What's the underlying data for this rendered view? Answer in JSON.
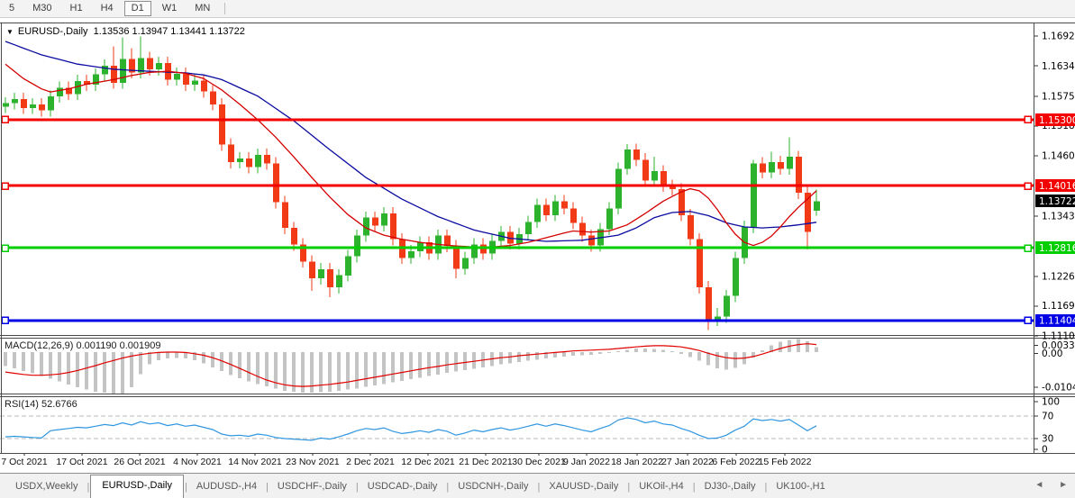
{
  "toolbar": {
    "timeframes": [
      "5",
      "M30",
      "H1",
      "H4",
      "D1",
      "W1",
      "MN"
    ],
    "active": "D1"
  },
  "header": {
    "dropdown": "▼",
    "symbol_title": "EURUSD-,Daily",
    "ohlc": "1.13536 1.13947 1.13441 1.13722"
  },
  "indicators": {
    "macd": {
      "title_label": "MACD(12,26,9)",
      "title_values": "0.001190 0.001909"
    },
    "rsi": {
      "title_label": "RSI(14)",
      "title_value": "52.6766"
    }
  },
  "tab_bar": {
    "tabs": [
      "USDX,Weekly",
      "EURUSD-,Daily",
      "AUDUSD-,H4",
      "USDCHF-,Daily",
      "USDCAD-,Daily",
      "USDCNH-,Daily",
      "XAUUSD-,Daily",
      "UKOil-,H4",
      "DJ30-,Daily",
      "UK100-,H1"
    ],
    "active": "EURUSD-,Daily",
    "nav_left": "◄",
    "nav_right": "►"
  },
  "chart_data": {
    "type": "candlestick",
    "symbol": "EURUSD-",
    "timeframe": "Daily",
    "current_bar": {
      "open": 1.13536,
      "high": 1.13947,
      "low": 1.13441,
      "close": 1.13722
    },
    "colors": {
      "up": "#2db22d",
      "down": "#f23a17",
      "ma_fast": "#d40000",
      "ma_slow": "#0a0aa0",
      "macd_hist": "#c4c4c4",
      "macd_signal": "#e00000",
      "rsi_line": "#2f96e0",
      "badge_text": "#ffffff",
      "current_badge_bg": "#000000"
    },
    "price_axis": {
      "ticks": [
        "1.16925",
        "1.16340",
        "1.15755",
        "1.15185",
        "1.14600",
        "1.13430",
        "1.12260",
        "1.11690",
        "1.11105"
      ],
      "tick_values": [
        1.16925,
        1.1634,
        1.15755,
        1.15185,
        1.146,
        1.1343,
        1.1226,
        1.1169,
        1.11105
      ],
      "current_badge": {
        "label": "1.13722",
        "value": 1.13722
      }
    },
    "hlines": [
      {
        "label": "1.15300",
        "value": 1.153,
        "color": "#f50000"
      },
      {
        "label": "1.14016",
        "value": 1.14016,
        "color": "#f50000"
      },
      {
        "label": "1.12816",
        "value": 1.12816,
        "color": "#00ce00"
      },
      {
        "label": "1.11404",
        "value": 1.11404,
        "color": "#0000e6"
      }
    ],
    "x_axis": {
      "labels": [
        "7 Oct 2021",
        "17 Oct 2021",
        "26 Oct 2021",
        "4 Nov 2021",
        "14 Nov 2021",
        "23 Nov 2021",
        "2 Dec 2021",
        "12 Dec 2021",
        "21 Dec 2021",
        "30 Dec 2021",
        "9 Jan 2022",
        "18 Jan 2022",
        "27 Jan 2022",
        "6 Feb 2022",
        "15 Feb 2022"
      ],
      "x": [
        27,
        91,
        155,
        219,
        283,
        347,
        411,
        475,
        539,
        598,
        651,
        707,
        763,
        817,
        871
      ]
    },
    "candles": [
      [
        1.1555,
        1.1574,
        1.1543,
        1.1562
      ],
      [
        1.1562,
        1.1582,
        1.155,
        1.157
      ],
      [
        1.157,
        1.1582,
        1.1541,
        1.1553
      ],
      [
        1.1553,
        1.1572,
        1.1541,
        1.156
      ],
      [
        1.156,
        1.1572,
        1.1536,
        1.1548
      ],
      [
        1.1548,
        1.1587,
        1.1536,
        1.1575
      ],
      [
        1.1575,
        1.1604,
        1.1563,
        1.1592
      ],
      [
        1.1592,
        1.1604,
        1.1568,
        1.158
      ],
      [
        1.158,
        1.1617,
        1.1568,
        1.1605
      ],
      [
        1.1605,
        1.1617,
        1.1586,
        1.1598
      ],
      [
        1.1598,
        1.163,
        1.1586,
        1.1618
      ],
      [
        1.1618,
        1.1647,
        1.1606,
        1.1635
      ],
      [
        1.1635,
        1.1672,
        1.159,
        1.1602
      ],
      [
        1.1602,
        1.169,
        1.159,
        1.1648
      ],
      [
        1.1648,
        1.1669,
        1.161,
        1.1622
      ],
      [
        1.1622,
        1.1692,
        1.161,
        1.165
      ],
      [
        1.165,
        1.1662,
        1.1616,
        1.1628
      ],
      [
        1.1628,
        1.1652,
        1.1616,
        1.164
      ],
      [
        1.164,
        1.1652,
        1.1596,
        1.1608
      ],
      [
        1.1608,
        1.1631,
        1.1596,
        1.1619
      ],
      [
        1.1619,
        1.1631,
        1.1586,
        1.1598
      ],
      [
        1.1598,
        1.1618,
        1.1586,
        1.1606
      ],
      [
        1.1606,
        1.1618,
        1.1573,
        1.1585
      ],
      [
        1.1585,
        1.1597,
        1.1548,
        1.156
      ],
      [
        1.156,
        1.1572,
        1.147,
        1.1482
      ],
      [
        1.1482,
        1.1494,
        1.1436,
        1.1448
      ],
      [
        1.1448,
        1.1467,
        1.1436,
        1.1455
      ],
      [
        1.1455,
        1.1467,
        1.1426,
        1.1438
      ],
      [
        1.1438,
        1.1474,
        1.1426,
        1.1462
      ],
      [
        1.1462,
        1.1474,
        1.1433,
        1.1445
      ],
      [
        1.1445,
        1.1457,
        1.1358,
        1.137
      ],
      [
        1.137,
        1.1382,
        1.1308,
        1.132
      ],
      [
        1.132,
        1.1332,
        1.1276,
        1.1288
      ],
      [
        1.1288,
        1.13,
        1.1243,
        1.1255
      ],
      [
        1.1255,
        1.1267,
        1.1198,
        1.1222
      ],
      [
        1.1222,
        1.1252,
        1.121,
        1.124
      ],
      [
        1.124,
        1.1252,
        1.1186,
        1.1205
      ],
      [
        1.1205,
        1.124,
        1.1193,
        1.1228
      ],
      [
        1.1228,
        1.1277,
        1.1216,
        1.1265
      ],
      [
        1.1265,
        1.1317,
        1.1253,
        1.1305
      ],
      [
        1.1305,
        1.1352,
        1.1293,
        1.134
      ],
      [
        1.134,
        1.1352,
        1.1313,
        1.1325
      ],
      [
        1.1325,
        1.136,
        1.1313,
        1.1348
      ],
      [
        1.1348,
        1.136,
        1.1286,
        1.1298
      ],
      [
        1.1298,
        1.131,
        1.125,
        1.1262
      ],
      [
        1.1262,
        1.1287,
        1.125,
        1.1275
      ],
      [
        1.1275,
        1.1304,
        1.1263,
        1.1292
      ],
      [
        1.1292,
        1.1304,
        1.1258,
        1.127
      ],
      [
        1.127,
        1.1317,
        1.1258,
        1.1305
      ],
      [
        1.1305,
        1.1317,
        1.1273,
        1.1285
      ],
      [
        1.1285,
        1.1297,
        1.1222,
        1.1241
      ],
      [
        1.1241,
        1.1274,
        1.1229,
        1.1262
      ],
      [
        1.1262,
        1.13,
        1.125,
        1.1288
      ],
      [
        1.1288,
        1.13,
        1.1258,
        1.127
      ],
      [
        1.127,
        1.1307,
        1.1258,
        1.1295
      ],
      [
        1.1295,
        1.1324,
        1.1283,
        1.1312
      ],
      [
        1.1312,
        1.1324,
        1.1278,
        1.129
      ],
      [
        1.129,
        1.132,
        1.1278,
        1.1308
      ],
      [
        1.1308,
        1.1344,
        1.1296,
        1.1332
      ],
      [
        1.1332,
        1.1377,
        1.132,
        1.1365
      ],
      [
        1.1365,
        1.1377,
        1.1333,
        1.1345
      ],
      [
        1.1345,
        1.1384,
        1.1333,
        1.1372
      ],
      [
        1.1372,
        1.1384,
        1.1346,
        1.1358
      ],
      [
        1.1358,
        1.137,
        1.1318,
        1.133
      ],
      [
        1.133,
        1.1342,
        1.1293,
        1.1305
      ],
      [
        1.1305,
        1.1317,
        1.1274,
        1.1286
      ],
      [
        1.1286,
        1.133,
        1.1274,
        1.1318
      ],
      [
        1.1318,
        1.137,
        1.1306,
        1.1358
      ],
      [
        1.1358,
        1.1447,
        1.1346,
        1.1435
      ],
      [
        1.1435,
        1.1483,
        1.1423,
        1.1472
      ],
      [
        1.1472,
        1.1484,
        1.144,
        1.1452
      ],
      [
        1.1452,
        1.1465,
        1.14,
        1.1412
      ],
      [
        1.1412,
        1.1458,
        1.14,
        1.143
      ],
      [
        1.143,
        1.1442,
        1.139,
        1.1402
      ],
      [
        1.1402,
        1.1414,
        1.1383,
        1.1395
      ],
      [
        1.1395,
        1.1407,
        1.1333,
        1.1345
      ],
      [
        1.1345,
        1.1357,
        1.1286,
        1.1298
      ],
      [
        1.1298,
        1.131,
        1.1193,
        1.1205
      ],
      [
        1.1205,
        1.1217,
        1.1122,
        1.1142
      ],
      [
        1.1142,
        1.1165,
        1.113,
        1.1148
      ],
      [
        1.1148,
        1.12,
        1.1136,
        1.1188
      ],
      [
        1.1188,
        1.1274,
        1.1176,
        1.1262
      ],
      [
        1.1262,
        1.1334,
        1.125,
        1.1322
      ],
      [
        1.1322,
        1.1452,
        1.131,
        1.1445
      ],
      [
        1.1445,
        1.1457,
        1.1416,
        1.1428
      ],
      [
        1.1428,
        1.1468,
        1.1416,
        1.1448
      ],
      [
        1.1448,
        1.146,
        1.1423,
        1.1435
      ],
      [
        1.1435,
        1.1496,
        1.1423,
        1.1458
      ],
      [
        1.1458,
        1.147,
        1.1376,
        1.1388
      ],
      [
        1.1388,
        1.14,
        1.1278,
        1.1312
      ],
      [
        1.13536,
        1.13947,
        1.13441,
        1.13722
      ]
    ],
    "ma_slow_blue_anchors": [
      [
        0,
        1.1682
      ],
      [
        4,
        1.1656
      ],
      [
        8,
        1.1638
      ],
      [
        12,
        1.1628
      ],
      [
        16,
        1.1624
      ],
      [
        20,
        1.1621
      ],
      [
        22,
        1.1617
      ],
      [
        24,
        1.1608
      ],
      [
        28,
        1.1576
      ],
      [
        32,
        1.1528
      ],
      [
        36,
        1.1472
      ],
      [
        40,
        1.1418
      ],
      [
        44,
        1.1376
      ],
      [
        48,
        1.1342
      ],
      [
        52,
        1.1316
      ],
      [
        56,
        1.13
      ],
      [
        60,
        1.1294
      ],
      [
        64,
        1.1296
      ],
      [
        68,
        1.1306
      ],
      [
        70,
        1.132
      ],
      [
        72,
        1.134
      ],
      [
        74,
        1.135
      ],
      [
        76,
        1.1352
      ],
      [
        78,
        1.1344
      ],
      [
        80,
        1.133
      ],
      [
        82,
        1.1322
      ],
      [
        84,
        1.132
      ],
      [
        86,
        1.1322
      ],
      [
        88,
        1.1326
      ],
      [
        90,
        1.1331
      ]
    ],
    "ma_fast_red_anchors": [
      [
        0,
        1.1638
      ],
      [
        2,
        1.161
      ],
      [
        4,
        1.159
      ],
      [
        5,
        1.1584
      ],
      [
        7,
        1.159
      ],
      [
        9,
        1.1599
      ],
      [
        12,
        1.1608
      ],
      [
        14,
        1.1616
      ],
      [
        16,
        1.1622
      ],
      [
        18,
        1.1624
      ],
      [
        20,
        1.162
      ],
      [
        22,
        1.161
      ],
      [
        24,
        1.1588
      ],
      [
        26,
        1.156
      ],
      [
        28,
        1.153
      ],
      [
        30,
        1.1496
      ],
      [
        32,
        1.1458
      ],
      [
        34,
        1.1418
      ],
      [
        36,
        1.138
      ],
      [
        38,
        1.1346
      ],
      [
        40,
        1.132
      ],
      [
        42,
        1.1306
      ],
      [
        44,
        1.1298
      ],
      [
        46,
        1.1292
      ],
      [
        48,
        1.1288
      ],
      [
        50,
        1.1285
      ],
      [
        52,
        1.1283
      ],
      [
        54,
        1.1283
      ],
      [
        56,
        1.1286
      ],
      [
        58,
        1.1292
      ],
      [
        60,
        1.1301
      ],
      [
        62,
        1.131
      ],
      [
        63,
        1.1314
      ],
      [
        65,
        1.1312
      ],
      [
        67,
        1.1314
      ],
      [
        69,
        1.1326
      ],
      [
        71,
        1.1348
      ],
      [
        73,
        1.1372
      ],
      [
        75,
        1.139
      ],
      [
        76,
        1.1396
      ],
      [
        77,
        1.1392
      ],
      [
        78,
        1.1378
      ],
      [
        79,
        1.1356
      ],
      [
        80,
        1.133
      ],
      [
        81,
        1.1308
      ],
      [
        82,
        1.1292
      ],
      [
        83,
        1.1286
      ],
      [
        84,
        1.1292
      ],
      [
        85,
        1.1304
      ],
      [
        86,
        1.1322
      ],
      [
        87,
        1.1342
      ],
      [
        88,
        1.136
      ],
      [
        89,
        1.1376
      ],
      [
        90,
        1.1392
      ]
    ],
    "macd": {
      "scale_labels": [
        "0.003331",
        "0.00",
        "-0.010439"
      ],
      "scale_max": 0.003331,
      "scale_min": -0.010439,
      "hist": [
        -0.0035,
        -0.0041,
        -0.0047,
        -0.0053,
        -0.006,
        -0.0067,
        -0.0074,
        -0.0081,
        -0.0088,
        -0.0094,
        -0.0099,
        -0.0102,
        -0.0104,
        -0.0104,
        -0.0088,
        -0.0055,
        -0.003,
        -0.002,
        -0.0016,
        -0.0015,
        -0.0016,
        -0.002,
        -0.0028,
        -0.0038,
        -0.0048,
        -0.0058,
        -0.0066,
        -0.0073,
        -0.008,
        -0.0086,
        -0.0092,
        -0.0097,
        -0.01,
        -0.0102,
        -0.0102,
        -0.0101,
        -0.0099,
        -0.0097,
        -0.0094,
        -0.0091,
        -0.0087,
        -0.0084,
        -0.008,
        -0.0076,
        -0.0072,
        -0.0068,
        -0.0064,
        -0.006,
        -0.0056,
        -0.0052,
        -0.0049,
        -0.0045,
        -0.0042,
        -0.0038,
        -0.0035,
        -0.0031,
        -0.0028,
        -0.0025,
        -0.0022,
        -0.0019,
        -0.0016,
        -0.0013,
        -0.0011,
        -0.0009,
        -0.0008,
        -0.0007,
        -0.0005,
        -0.0002,
        0.0002,
        0.0006,
        0.0009,
        0.0009,
        0.0008,
        0.0006,
        0.0002,
        -0.0004,
        -0.0012,
        -0.0022,
        -0.0033,
        -0.0041,
        -0.0044,
        -0.004,
        -0.003,
        -0.0014,
        0.0004,
        0.0017,
        0.0026,
        0.0031,
        0.0033,
        0.0027,
        0.0012
      ],
      "signal": [
        -0.005,
        -0.0053,
        -0.0056,
        -0.0058,
        -0.0058,
        -0.0057,
        -0.0055,
        -0.0051,
        -0.0046,
        -0.004,
        -0.0034,
        -0.0027,
        -0.0021,
        -0.0015,
        -0.001,
        -0.0006,
        -0.0003,
        -0.0001,
        0.0,
        0.0,
        -0.0001,
        -0.0004,
        -0.0008,
        -0.0014,
        -0.0022,
        -0.0031,
        -0.0041,
        -0.0051,
        -0.0061,
        -0.007,
        -0.0077,
        -0.0082,
        -0.0085,
        -0.0086,
        -0.0085,
        -0.0083,
        -0.0081,
        -0.0078,
        -0.0075,
        -0.0071,
        -0.0067,
        -0.0063,
        -0.0059,
        -0.0055,
        -0.0051,
        -0.0047,
        -0.0043,
        -0.0039,
        -0.0036,
        -0.0032,
        -0.0029,
        -0.0026,
        -0.0023,
        -0.002,
        -0.0017,
        -0.0014,
        -0.0012,
        -0.0009,
        -0.0007,
        -0.0005,
        -0.0003,
        -0.0001,
        0.0001,
        0.0003,
        0.0004,
        0.0005,
        0.0006,
        0.0007,
        0.0009,
        0.0011,
        0.0013,
        0.0015,
        0.0016,
        0.0016,
        0.0015,
        0.0013,
        0.0009,
        0.0004,
        -0.0003,
        -0.0009,
        -0.0014,
        -0.0016,
        -0.0015,
        -0.0011,
        -0.0005,
        0.0002,
        0.0009,
        0.0015,
        0.0019,
        0.0021,
        0.0019
      ]
    },
    "rsi": {
      "levels": [
        "100",
        "70",
        "30",
        "0"
      ],
      "series": [
        33,
        34,
        33,
        32,
        31,
        44,
        46,
        48,
        50,
        49,
        52,
        55,
        53,
        58,
        54,
        60,
        56,
        58,
        53,
        56,
        52,
        54,
        50,
        46,
        38,
        35,
        36,
        34,
        38,
        36,
        32,
        30,
        29,
        28,
        27,
        31,
        29,
        33,
        38,
        44,
        48,
        46,
        49,
        43,
        39,
        41,
        44,
        41,
        46,
        43,
        36,
        40,
        45,
        42,
        46,
        49,
        45,
        48,
        52,
        56,
        52,
        56,
        53,
        49,
        45,
        42,
        48,
        53,
        63,
        67,
        64,
        58,
        61,
        56,
        54,
        48,
        43,
        36,
        30,
        31,
        36,
        45,
        52,
        65,
        62,
        64,
        61,
        64,
        54,
        44,
        52.7
      ]
    }
  }
}
